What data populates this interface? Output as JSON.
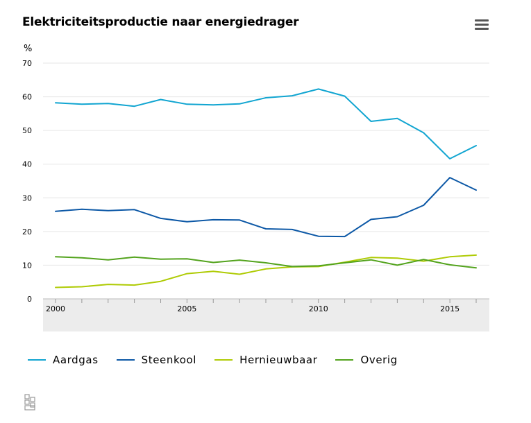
{
  "header": {
    "title": "Elektriciteitsproductie naar energiedrager",
    "unit": "%"
  },
  "colors": {
    "Aardgas": "#11a5d1",
    "Steenkool": "#0c58a6",
    "Hernieuwbaar": "#afcb05",
    "Overig": "#53a31d",
    "grid": "#e6e6e6",
    "axis_band": "#ececec"
  },
  "icons": {
    "menu": "hamburger-menu-icon",
    "logo": "cbs-logo-icon"
  },
  "chart_data": {
    "type": "line",
    "title": "Elektriciteitsproductie naar energiedrager",
    "ylabel": "%",
    "ylim": [
      0,
      70
    ],
    "yticks": [
      0,
      10,
      20,
      30,
      40,
      50,
      60,
      70
    ],
    "xticks": [
      "2000",
      "2005",
      "2010",
      "2015"
    ],
    "x": [
      2000,
      2001,
      2002,
      2003,
      2004,
      2005,
      2006,
      2007,
      2008,
      2009,
      2010,
      2011,
      2012,
      2013,
      2014,
      2015,
      2016
    ],
    "grid": true,
    "legend": "bottom",
    "series": [
      {
        "name": "Aardgas",
        "values": [
          58.2,
          57.8,
          58.0,
          57.2,
          59.2,
          57.8,
          57.6,
          57.9,
          59.7,
          60.3,
          62.3,
          60.2,
          52.7,
          53.6,
          49.3,
          41.6,
          45.5
        ]
      },
      {
        "name": "Steenkool",
        "values": [
          26.0,
          26.6,
          26.2,
          26.5,
          23.9,
          22.9,
          23.5,
          23.4,
          20.8,
          20.6,
          18.6,
          18.5,
          23.6,
          24.4,
          27.8,
          36.0,
          32.3
        ]
      },
      {
        "name": "Hernieuwbaar",
        "values": [
          3.4,
          3.6,
          4.3,
          4.1,
          5.2,
          7.5,
          8.2,
          7.3,
          8.9,
          9.5,
          9.6,
          10.9,
          12.3,
          12.1,
          11.2,
          12.5,
          13.0
        ]
      },
      {
        "name": "Overig",
        "values": [
          12.5,
          12.2,
          11.6,
          12.4,
          11.8,
          11.9,
          10.8,
          11.5,
          10.7,
          9.6,
          9.8,
          10.7,
          11.6,
          10.0,
          11.7,
          10.1,
          9.2
        ]
      }
    ]
  }
}
